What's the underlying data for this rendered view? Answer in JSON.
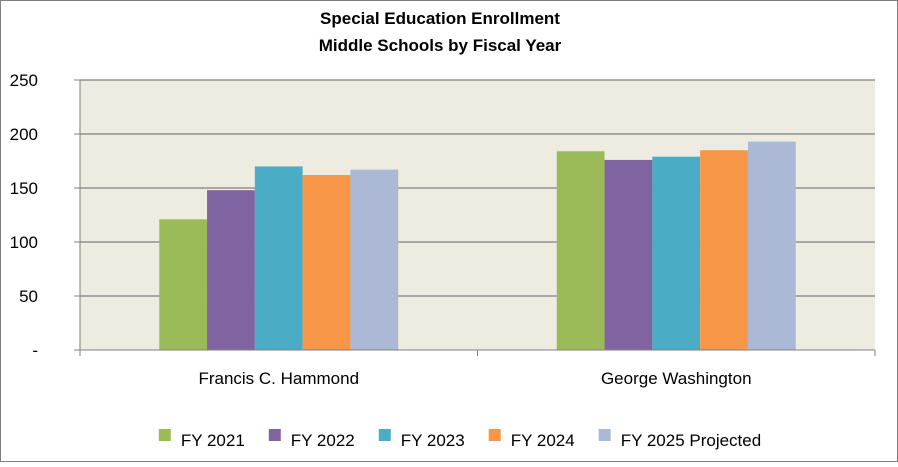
{
  "chart_data": {
    "type": "bar",
    "title": "Special Education Enrollment",
    "subtitle": "Middle Schools by Fiscal Year",
    "xlabel": "",
    "ylabel": "",
    "categories": [
      "Francis C. Hammond",
      "George Washington"
    ],
    "series": [
      {
        "name": "FY 2021",
        "color": "#9BBB59",
        "values": [
          121,
          184
        ]
      },
      {
        "name": "FY 2022",
        "color": "#8064A2",
        "values": [
          148,
          176
        ]
      },
      {
        "name": "FY 2023",
        "color": "#4BACC6",
        "values": [
          170,
          179
        ]
      },
      {
        "name": "FY 2024",
        "color": "#F79646",
        "values": [
          162,
          185
        ]
      },
      {
        "name": "FY 2025 Projected",
        "color": "#ABB9D7",
        "values": [
          167,
          193
        ]
      }
    ],
    "ylim": [
      0,
      250
    ],
    "yticks": [
      {
        "value": 0,
        "label": "-"
      },
      {
        "value": 50,
        "label": "50"
      },
      {
        "value": 100,
        "label": "100"
      },
      {
        "value": 150,
        "label": "150"
      },
      {
        "value": 200,
        "label": "200"
      },
      {
        "value": 250,
        "label": "250"
      }
    ],
    "grid": true,
    "legend_position": "bottom",
    "plot_background": "#EEECE1",
    "gridline_color": "#7F7F7F",
    "frame_color": "#7F7F7F"
  }
}
